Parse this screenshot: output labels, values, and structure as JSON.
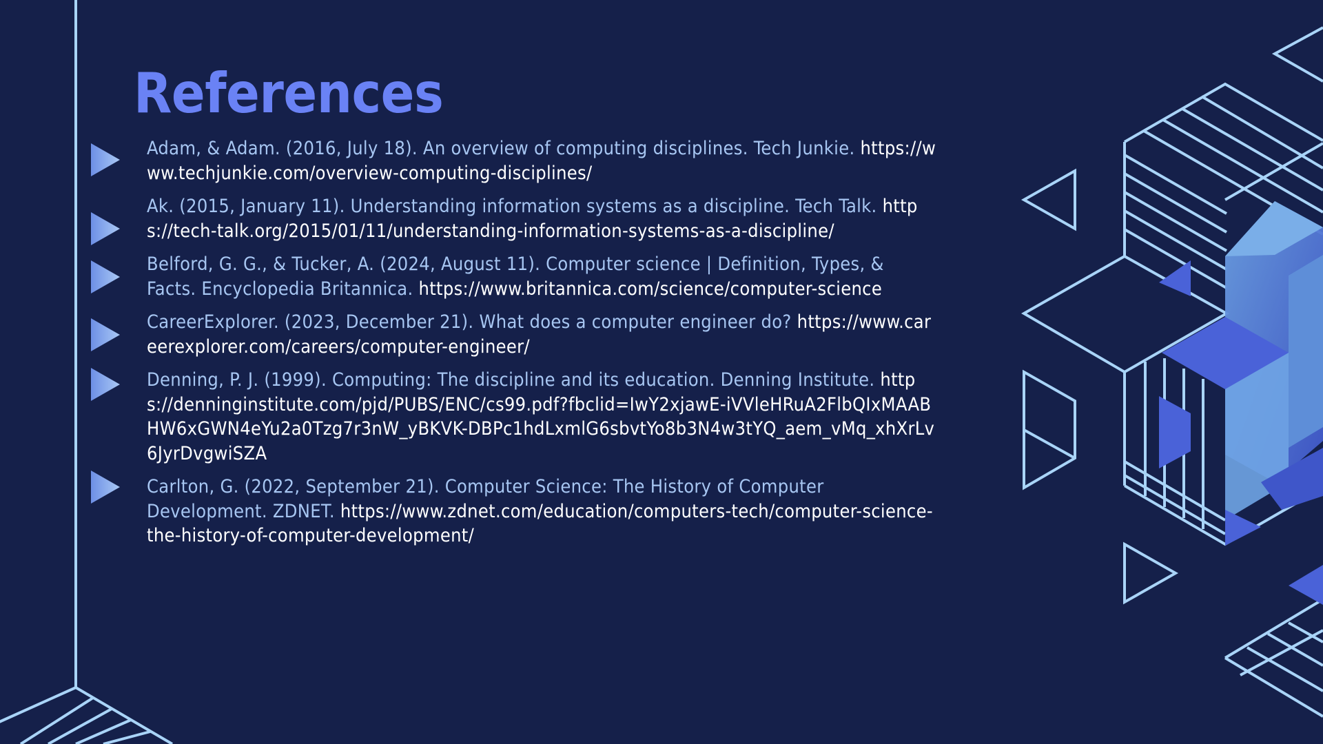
{
  "slide": {
    "title": "References",
    "references": [
      {
        "citation": "Adam, & Adam. (2016, July 18). An overview of computing disciplines. Tech Junkie.",
        "url": "https://www.techjunkie.com/overview-computing-disciplines/"
      },
      {
        "citation": "Ak. (2015, January 11). Understanding information systems as a discipline. Tech Talk.",
        "url": "https://tech-talk.org/2015/01/11/understanding-information-systems-as-a-discipline/"
      },
      {
        "citation": "Belford, G. G., & Tucker, A. (2024, August 11). Computer science | Definition, Types, & Facts. Encyclopedia Britannica.",
        "url": "https://www.britannica.com/science/computer-science"
      },
      {
        "citation": "CareerExplorer. (2023, December 21). What does a computer engineer do?",
        "url": "https://www.careerexplorer.com/careers/computer-engineer/"
      },
      {
        "citation": "Denning, P. J. (1999). Computing: The discipline and its education. Denning Institute.",
        "url": "https://denninginstitute.com/pjd/PUBS/ENC/cs99.pdf?fbclid=IwY2xjawE-iVVleHRuA2FlbQIxMAABHW6xGWN4eYu2a0Tzg7r3nW_yBKVK-DBPc1hdLxmlG6sbvtYo8b3N4w3tYQ_aem_vMq_xhXrLv6JyrDvgwiSZA"
      },
      {
        "citation": "Carlton, G. (2022, September 21). Computer Science: The History of Computer Development. ZDNET.",
        "url": "https://www.zdnet.com/education/computers-tech/computer-science-the-history-of-computer-development/"
      }
    ]
  },
  "colors": {
    "background": "#15204a",
    "title": "#6a82f5",
    "citation_text": "#a7c6f2",
    "url_text": "#ffffff",
    "line_art": "#a9d4f8",
    "cube_blue": "#4a62d8",
    "cube_light": "#6fa4e4"
  },
  "icons": {
    "bullet": "triangle-bullet-icon"
  }
}
